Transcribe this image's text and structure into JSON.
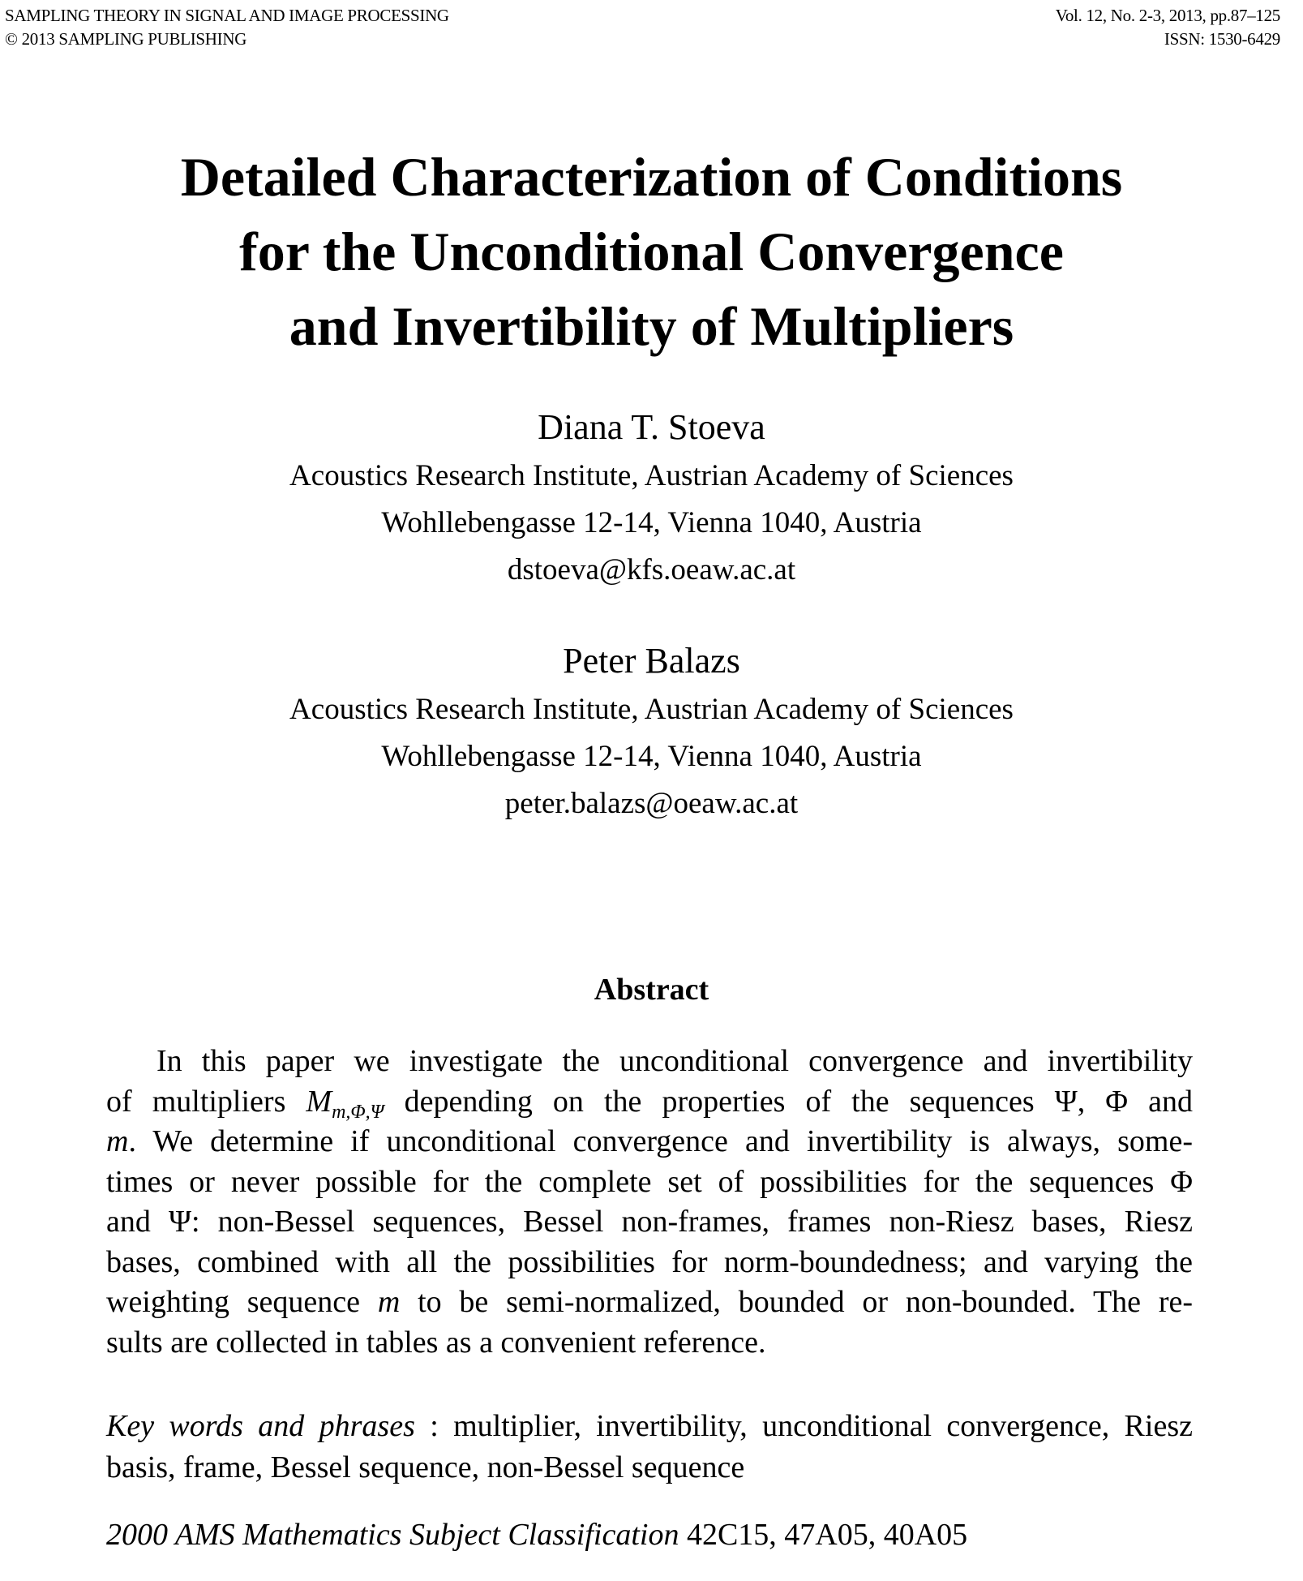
{
  "header": {
    "journal": "SAMPLING THEORY IN SIGNAL AND IMAGE PROCESSING",
    "copyright": "© 2013 SAMPLING PUBLISHING",
    "volume": "Vol. 12, No. 2-3, 2013, pp.87–125",
    "issn": "ISSN: 1530-6429"
  },
  "title_lines": [
    "Detailed Characterization of Conditions",
    "for the Unconditional Convergence",
    "and Invertibility of Multipliers"
  ],
  "authors": [
    {
      "name": "Diana T. Stoeva",
      "affiliation": "Acoustics Research Institute, Austrian Academy of Sciences",
      "address": "Wohllebengasse 12-14, Vienna 1040, Austria",
      "email": "dstoeva@kfs.oeaw.ac.at"
    },
    {
      "name": "Peter Balazs",
      "affiliation": "Acoustics Research Institute, Austrian Academy of Sciences",
      "address": "Wohllebengasse 12-14, Vienna 1040, Austria",
      "email": "peter.balazs@oeaw.ac.at"
    }
  ],
  "abstract": {
    "heading": "Abstract",
    "l1": "In this paper we investigate the unconditional convergence and invertibility",
    "l2a": "of multipliers ",
    "l2_math": "M",
    "l2_sub": "m,Φ,Ψ",
    "l2b": " depending on the properties of the sequences Ψ, Φ and",
    "l3_math": "m",
    "l3b": ". We determine if unconditional convergence and invertibility is always, some-",
    "l4": "times or never possible for the complete set of possibilities for the sequences Φ",
    "l5": "and Ψ: non-Bessel sequences, Bessel non-frames, frames non-Riesz bases, Riesz",
    "l6": "bases, combined with all the possibilities for norm-boundedness; and varying the",
    "l7a": "weighting sequence ",
    "l7_math": "m",
    "l7b": " to be semi-normalized, bounded or non-bounded. The re-",
    "l8": "sults are collected in tables as a convenient reference."
  },
  "keywords": {
    "label": "Key words and phrases",
    "sep": " : ",
    "l1": "multiplier, invertibility, unconditional convergence, Riesz",
    "l2": "basis, frame, Bessel sequence, non-Bessel sequence"
  },
  "ams": {
    "label": "2000 AMS Mathematics Subject Classification",
    "codes": " 42C15, 47A05, 40A05"
  }
}
